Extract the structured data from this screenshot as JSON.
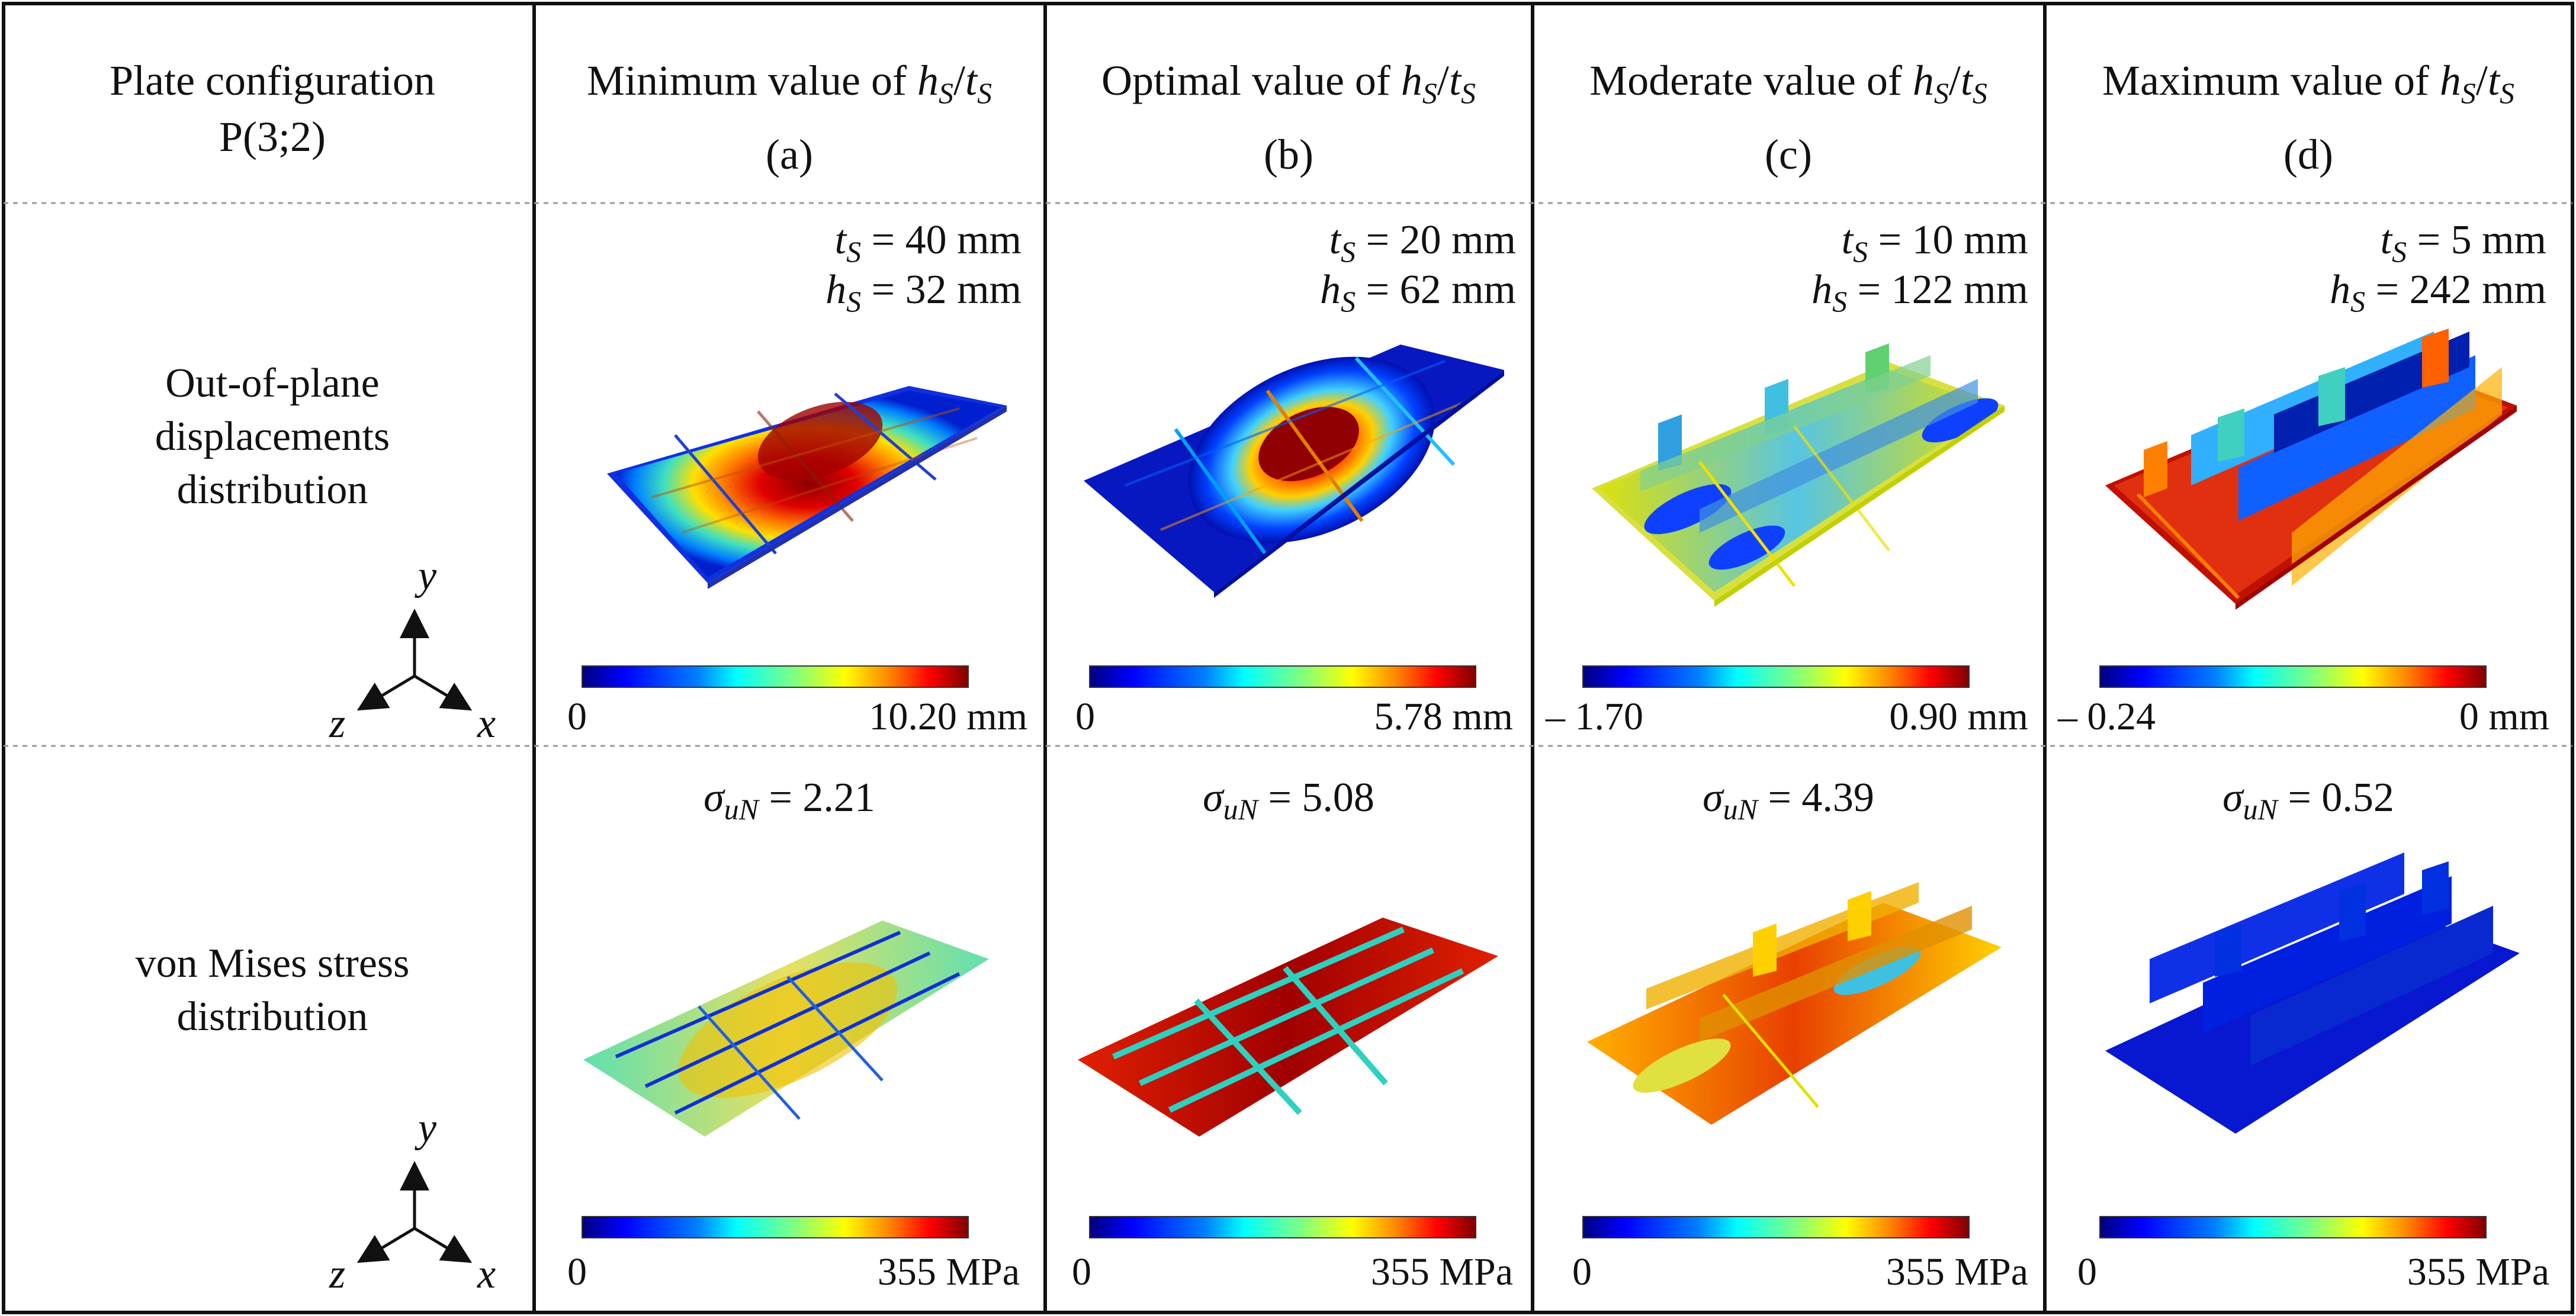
{
  "figure": {
    "header": {
      "config_line1": "Plate configuration",
      "config_line2": "P(3;2)",
      "columns": [
        {
          "title": "Minimum value of",
          "label": "(a)"
        },
        {
          "title": "Optimal value of",
          "label": "(b)"
        },
        {
          "title": "Moderate value of",
          "label": "(c)"
        },
        {
          "title": "Maximum value of",
          "label": "(d)"
        }
      ],
      "ratio_h": "h",
      "ratio_t": "t",
      "ratio_sub": "S",
      "ratio_slash": "/"
    },
    "rows": {
      "displacement": {
        "line1": "Out-of-plane",
        "line2": "displacements",
        "line3": "distribution"
      },
      "stress": {
        "line1": "von Mises stress",
        "line2": "distribution"
      }
    },
    "axes": {
      "y": "y",
      "z": "z",
      "x": "x"
    },
    "params": [
      {
        "t_sym": "t",
        "t_sub": "S",
        "t_val": "= 40 mm",
        "h_sym": "h",
        "h_sub": "S",
        "h_val": "= 32 mm"
      },
      {
        "t_sym": "t",
        "t_sub": "S",
        "t_val": "= 20 mm",
        "h_sym": "h",
        "h_sub": "S",
        "h_val": "= 62 mm"
      },
      {
        "t_sym": "t",
        "t_sub": "S",
        "t_val": "= 10 mm",
        "h_sym": "h",
        "h_sub": "S",
        "h_val": "= 122 mm"
      },
      {
        "t_sym": "t",
        "t_sub": "S",
        "t_val": "= 5 mm",
        "h_sym": "h",
        "h_sub": "S",
        "h_val": "= 242 mm"
      }
    ],
    "displacement_scales": [
      {
        "min": "0",
        "max": "10.20 mm"
      },
      {
        "min": "0",
        "max": "5.78 mm"
      },
      {
        "min": "– 1.70",
        "max": "0.90 mm"
      },
      {
        "min": "– 0.24",
        "max": "0 mm"
      }
    ],
    "stress_values": [
      {
        "sym": "σ",
        "sub": "uN",
        "val": "= 2.21"
      },
      {
        "sym": "σ",
        "sub": "uN",
        "val": "= 5.08"
      },
      {
        "sym": "σ",
        "sub": "uN",
        "val": "= 4.39"
      },
      {
        "sym": "σ",
        "sub": "uN",
        "val": "= 0.52"
      }
    ],
    "stress_scales": [
      {
        "min": "0",
        "max": "355 MPa"
      },
      {
        "min": "0",
        "max": "355 MPa"
      },
      {
        "min": "0",
        "max": "355 MPa"
      },
      {
        "min": "0",
        "max": "355 MPa"
      }
    ],
    "colors": {
      "jet": [
        "#00007f",
        "#0000ff",
        "#007fff",
        "#00ffff",
        "#7fff7f",
        "#ffff00",
        "#ff7f00",
        "#ff0000",
        "#7f0000"
      ],
      "border": "#111111",
      "dash": "#999999"
    }
  }
}
